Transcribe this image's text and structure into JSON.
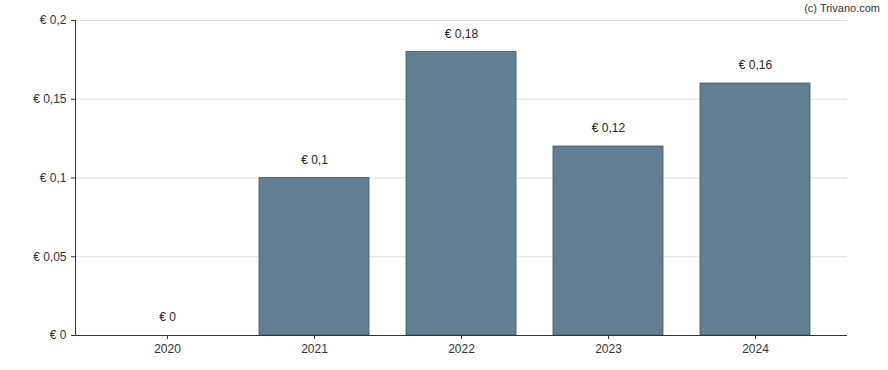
{
  "chart_data": {
    "type": "bar",
    "annotations": [
      "(c) Trivano.com"
    ],
    "categories": [
      "2020",
      "2021",
      "2022",
      "2023",
      "2024"
    ],
    "values": [
      0,
      0.1,
      0.18,
      0.12,
      0.16
    ],
    "value_labels": [
      "€ 0",
      "€ 0,1",
      "€ 0,18",
      "€ 0,12",
      "€ 0,16"
    ],
    "data_labels": true,
    "color": "#647f93",
    "ylim": [
      0,
      0.2
    ],
    "yticks": [
      {
        "value": 0,
        "label": "€ 0"
      },
      {
        "value": 0.05,
        "label": "€ 0,05"
      },
      {
        "value": 0.1,
        "label": "€ 0,1"
      },
      {
        "value": 0.15,
        "label": "€ 0,15"
      },
      {
        "value": 0.2,
        "label": "€ 0,2"
      }
    ],
    "grid": true
  }
}
